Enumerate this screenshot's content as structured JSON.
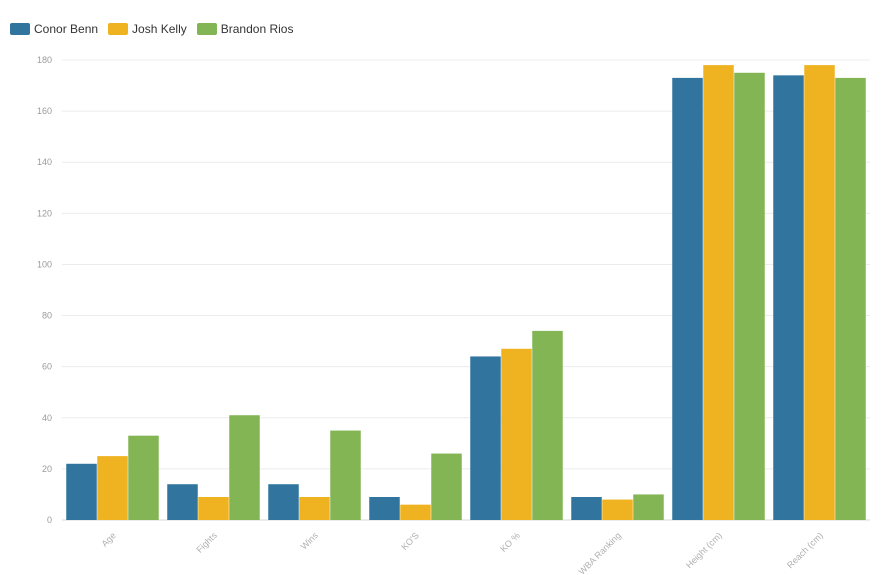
{
  "chart_data": {
    "type": "bar",
    "categories": [
      "Age",
      "Fights",
      "Wins",
      "KO'S",
      "KO %",
      "WBA Ranking",
      "Height (cm)",
      "Reach (cm)"
    ],
    "series": [
      {
        "name": "Conor Benn",
        "color": "#31759f",
        "values": [
          22,
          14,
          14,
          9,
          64,
          9,
          173,
          174
        ]
      },
      {
        "name": "Josh Kelly",
        "color": "#efb321",
        "values": [
          25,
          9,
          9,
          6,
          67,
          8,
          178,
          178
        ]
      },
      {
        "name": "Brandon Rios",
        "color": "#83b555",
        "values": [
          33,
          41,
          35,
          26,
          74,
          10,
          175,
          173
        ]
      }
    ],
    "ylim": [
      0,
      180
    ],
    "yticks": [
      0,
      20,
      40,
      60,
      80,
      100,
      120,
      140,
      160,
      180
    ],
    "grid": true,
    "legend": "top-left",
    "xlabel": "",
    "ylabel": ""
  }
}
